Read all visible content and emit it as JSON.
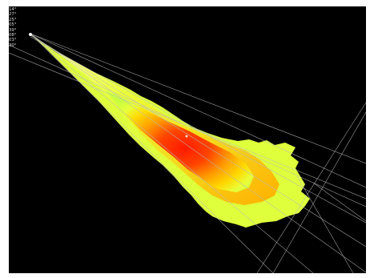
{
  "viewer": {
    "colors": {
      "background": "#000000",
      "frame": "#ffffff",
      "guide_line": "#b9b9b9",
      "heat_low": "#e8ff3a",
      "heat_mid": "#ffb000",
      "heat_high": "#ff1a00"
    },
    "angle_labels": [
      "14°",
      "27°",
      "25°",
      "05°",
      "39°",
      "08°",
      "03°",
      "30°"
    ]
  }
}
